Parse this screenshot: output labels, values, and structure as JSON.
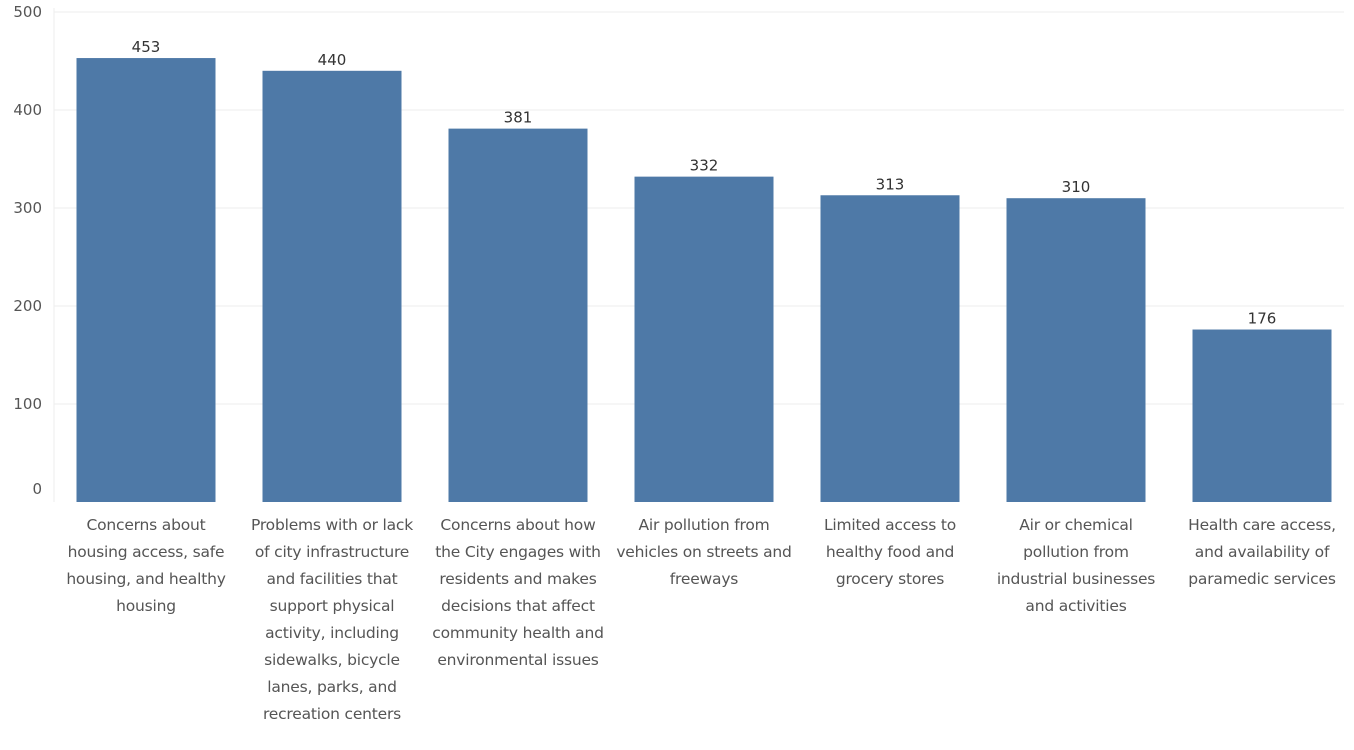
{
  "chart_data": {
    "type": "bar",
    "categories": [
      "Concerns about housing access, safe housing, and healthy housing",
      "Problems with or lack of city infrastructure and facilities that support physical activity, including sidewalks, bicycle lanes, parks, and recreation centers",
      "Concerns about how the City engages with residents and makes decisions that affect community health and environmental issues",
      "Air pollution from vehicles on streets and freeways",
      "Limited access to healthy food and grocery stores",
      "Air or chemical pollution from industrial businesses and activities",
      "Health care access, and availability of paramedic services"
    ],
    "values": [
      453,
      440,
      381,
      332,
      313,
      310,
      176
    ],
    "data_labels": [
      "453",
      "440",
      "381",
      "332",
      "313",
      "310",
      "176"
    ],
    "yticks": [
      0,
      100,
      200,
      300,
      400,
      500
    ],
    "ytick_labels": [
      "0",
      "100",
      "200",
      "300",
      "400",
      "500"
    ],
    "ylim": [
      0,
      500
    ],
    "grid": true,
    "legend": "none",
    "title": "",
    "xlabel": "",
    "ylabel": "",
    "colors": {
      "bar": "#4e79a7",
      "gridline": "#eeeeee",
      "axis_text": "#555555",
      "label_text": "#333333"
    }
  }
}
